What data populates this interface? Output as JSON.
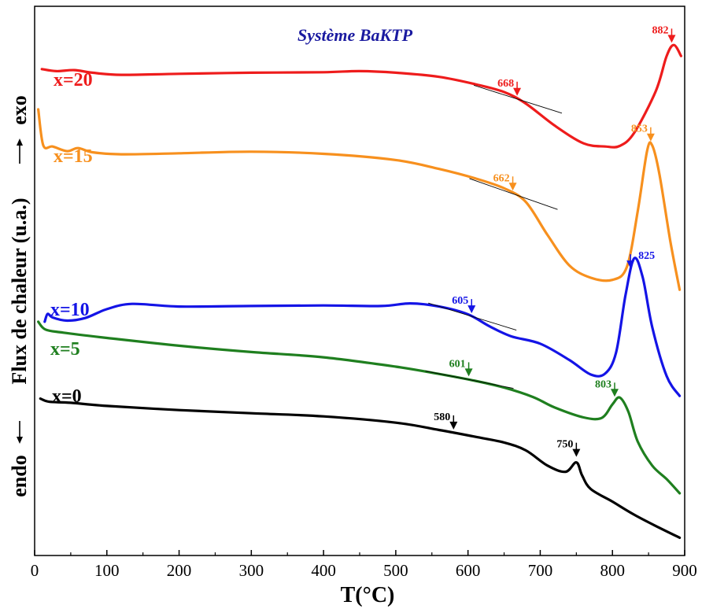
{
  "chart_data": {
    "type": "line",
    "title": "Système BaKTP",
    "xlabel": "T(°C)",
    "ylabel_left": "endo",
    "ylabel_mid": "Flux de chaleur (u.a.)",
    "ylabel_right": "exo",
    "xlim": [
      0,
      900
    ],
    "ylim": [
      0,
      100
    ],
    "x_ticks": [
      0,
      100,
      200,
      300,
      400,
      500,
      600,
      700,
      800,
      900
    ],
    "grid": false,
    "colors": {
      "x=20": "#ee1c1c",
      "x=15": "#f7901e",
      "x=10": "#1414e6",
      "x=5": "#1f7f1f",
      "x=0": "#000000",
      "title": "#1a1aa0"
    },
    "series": [
      {
        "name": "x=20",
        "label": "x=20",
        "points": [
          [
            10,
            88
          ],
          [
            30,
            87.6
          ],
          [
            55,
            87.8
          ],
          [
            80,
            87.3
          ],
          [
            120,
            86.9
          ],
          [
            200,
            87.1
          ],
          [
            300,
            87.3
          ],
          [
            400,
            87.4
          ],
          [
            450,
            87.6
          ],
          [
            500,
            87.3
          ],
          [
            560,
            86.5
          ],
          [
            610,
            85.1
          ],
          [
            650,
            83.6
          ],
          [
            680,
            81.4
          ],
          [
            720,
            77.2
          ],
          [
            760,
            73.8
          ],
          [
            790,
            73.2
          ],
          [
            810,
            73.3
          ],
          [
            830,
            75.8
          ],
          [
            860,
            83.8
          ],
          [
            875,
            90.5
          ],
          [
            885,
            92.6
          ],
          [
            895,
            90.5
          ]
        ],
        "annotations": [
          {
            "x": 668,
            "label": "668"
          },
          {
            "x": 882,
            "label": "882"
          }
        ]
      },
      {
        "name": "x=15",
        "label": "x=15",
        "points": [
          [
            5,
            80.3
          ],
          [
            12,
            73.4
          ],
          [
            25,
            73.2
          ],
          [
            45,
            72.3
          ],
          [
            60,
            72.9
          ],
          [
            80,
            72.1
          ],
          [
            120,
            71.7
          ],
          [
            200,
            71.9
          ],
          [
            300,
            72.2
          ],
          [
            400,
            71.8
          ],
          [
            500,
            70.6
          ],
          [
            560,
            68.9
          ],
          [
            610,
            67.1
          ],
          [
            650,
            65.2
          ],
          [
            680,
            62.6
          ],
          [
            710,
            56.3
          ],
          [
            740,
            50.5
          ],
          [
            770,
            48.1
          ],
          [
            800,
            47.7
          ],
          [
            820,
            50.2
          ],
          [
            835,
            60.8
          ],
          [
            848,
            72.4
          ],
          [
            855,
            73.4
          ],
          [
            865,
            67.9
          ],
          [
            880,
            55.2
          ],
          [
            893,
            45.8
          ]
        ],
        "annotations": [
          {
            "x": 662,
            "label": "662"
          },
          {
            "x": 853,
            "label": "853"
          }
        ]
      },
      {
        "name": "x=10",
        "label": "x=10",
        "points": [
          [
            14,
            39.7
          ],
          [
            18,
            41.2
          ],
          [
            25,
            40.5
          ],
          [
            45,
            39.9
          ],
          [
            70,
            40.4
          ],
          [
            100,
            42.1
          ],
          [
            135,
            43.1
          ],
          [
            200,
            42.6
          ],
          [
            300,
            42.7
          ],
          [
            400,
            42.8
          ],
          [
            480,
            42.7
          ],
          [
            520,
            43.2
          ],
          [
            560,
            42.6
          ],
          [
            600,
            41.1
          ],
          [
            630,
            38.8
          ],
          [
            660,
            36.9
          ],
          [
            700,
            35.5
          ],
          [
            740,
            32.4
          ],
          [
            770,
            29.6
          ],
          [
            790,
            29.8
          ],
          [
            805,
            33.8
          ],
          [
            818,
            44.7
          ],
          [
            830,
            51.8
          ],
          [
            842,
            48.1
          ],
          [
            855,
            38.7
          ],
          [
            875,
            29.3
          ],
          [
            893,
            25.5
          ]
        ],
        "annotations": [
          {
            "x": 605,
            "label": "605"
          },
          {
            "x": 825,
            "label": "825"
          }
        ]
      },
      {
        "name": "x=5",
        "label": "x=5",
        "points": [
          [
            5,
            39.7
          ],
          [
            15,
            38.2
          ],
          [
            40,
            37.6
          ],
          [
            100,
            36.6
          ],
          [
            200,
            35.1
          ],
          [
            300,
            33.9
          ],
          [
            400,
            32.9
          ],
          [
            500,
            31.1
          ],
          [
            560,
            29.7
          ],
          [
            610,
            28.4
          ],
          [
            650,
            27.1
          ],
          [
            690,
            25.3
          ],
          [
            720,
            23.3
          ],
          [
            760,
            21.4
          ],
          [
            785,
            21.3
          ],
          [
            800,
            23.9
          ],
          [
            810,
            25.2
          ],
          [
            822,
            22.5
          ],
          [
            835,
            16.8
          ],
          [
            855,
            12.2
          ],
          [
            875,
            9.6
          ],
          [
            893,
            6.9
          ]
        ],
        "annotations": [
          {
            "x": 601,
            "label": "601"
          },
          {
            "x": 803,
            "label": "803"
          }
        ]
      },
      {
        "name": "x=0",
        "label": "x=0",
        "points": [
          [
            8,
            25.0
          ],
          [
            20,
            24.4
          ],
          [
            50,
            24.2
          ],
          [
            100,
            23.6
          ],
          [
            200,
            22.8
          ],
          [
            300,
            22.2
          ],
          [
            400,
            21.6
          ],
          [
            500,
            20.4
          ],
          [
            560,
            19.0
          ],
          [
            610,
            17.7
          ],
          [
            650,
            16.6
          ],
          [
            680,
            15.1
          ],
          [
            710,
            12.2
          ],
          [
            735,
            11.0
          ],
          [
            750,
            12.8
          ],
          [
            758,
            10.3
          ],
          [
            770,
            7.7
          ],
          [
            800,
            5.3
          ],
          [
            830,
            2.8
          ],
          [
            865,
            0.3
          ],
          [
            893,
            -1.6
          ]
        ],
        "annotations": [
          {
            "x": 580,
            "label": "580"
          },
          {
            "x": 750,
            "label": "750"
          }
        ]
      }
    ]
  }
}
